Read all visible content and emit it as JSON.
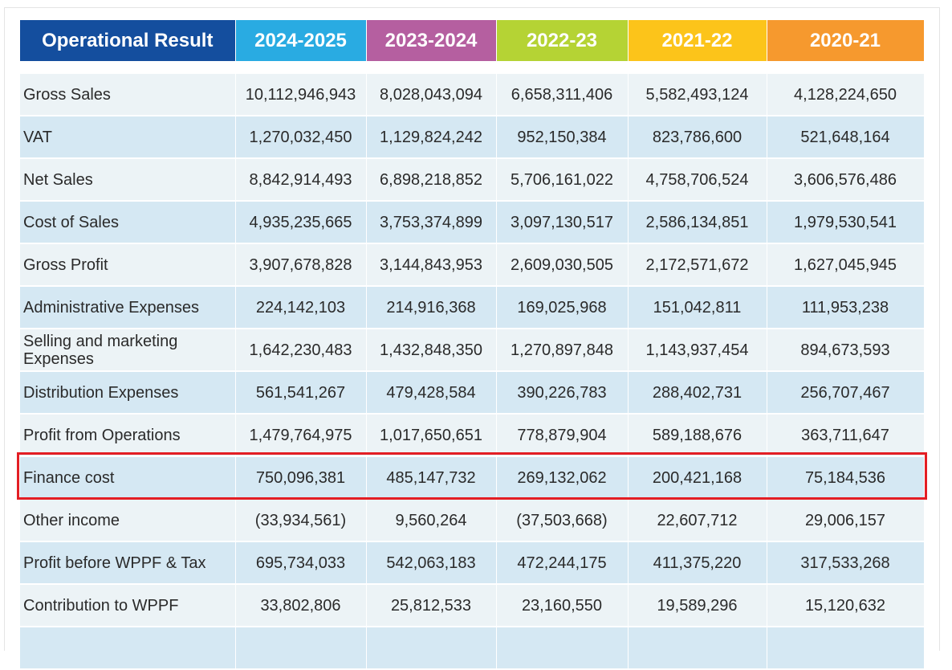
{
  "header": {
    "title": "Operational Result",
    "years": [
      {
        "label": "2024-2025",
        "color": "#29abe2"
      },
      {
        "label": "2023-2024",
        "color": "#b55fa0"
      },
      {
        "label": "2022-23",
        "color": "#b5d334"
      },
      {
        "label": "2021-22",
        "color": "#fcc41a"
      },
      {
        "label": "2020-21",
        "color": "#f6992e"
      }
    ],
    "title_color": "#144e9e"
  },
  "highlight_color": "#e31e24",
  "rows": [
    {
      "label": "Gross Sales",
      "values": [
        "10,112,946,943",
        "8,028,043,094",
        "6,658,311,406",
        "5,582,493,124",
        "4,128,224,650"
      ]
    },
    {
      "label": "VAT",
      "values": [
        "1,270,032,450",
        "1,129,824,242",
        "952,150,384",
        "823,786,600",
        "521,648,164"
      ]
    },
    {
      "label": "Net Sales",
      "values": [
        "8,842,914,493",
        "6,898,218,852",
        "5,706,161,022",
        "4,758,706,524",
        "3,606,576,486"
      ]
    },
    {
      "label": "Cost of Sales",
      "values": [
        "4,935,235,665",
        "3,753,374,899",
        "3,097,130,517",
        "2,586,134,851",
        "1,979,530,541"
      ]
    },
    {
      "label": "Gross Profit",
      "values": [
        "3,907,678,828",
        "3,144,843,953",
        "2,609,030,505",
        "2,172,571,672",
        "1,627,045,945"
      ]
    },
    {
      "label": "Administrative Expenses",
      "values": [
        "224,142,103",
        "214,916,368",
        "169,025,968",
        "151,042,811",
        "111,953,238"
      ]
    },
    {
      "label": "Selling and marketing Expenses",
      "values": [
        "1,642,230,483",
        "1,432,848,350",
        "1,270,897,848",
        "1,143,937,454",
        "894,673,593"
      ]
    },
    {
      "label": "Distribution Expenses",
      "values": [
        "561,541,267",
        "479,428,584",
        "390,226,783",
        "288,402,731",
        "256,707,467"
      ]
    },
    {
      "label": "Profit from Operations",
      "values": [
        "1,479,764,975",
        "1,017,650,651",
        "778,879,904",
        "589,188,676",
        "363,711,647"
      ]
    },
    {
      "label": "Finance cost",
      "values": [
        "750,096,381",
        "485,147,732",
        "269,132,062",
        "200,421,168",
        "75,184,536"
      ],
      "highlighted": true
    },
    {
      "label": "Other income",
      "values": [
        "(33,934,561)",
        "9,560,264",
        "(37,503,668)",
        "22,607,712",
        "29,006,157"
      ]
    },
    {
      "label": "Profit before WPPF & Tax",
      "values": [
        "695,734,033",
        "542,063,183",
        "472,244,175",
        "411,375,220",
        "317,533,268"
      ]
    },
    {
      "label": "Contribution to WPPF",
      "values": [
        "33,802,806",
        "25,812,533",
        "23,160,550",
        "19,589,296",
        "15,120,632"
      ]
    }
  ]
}
